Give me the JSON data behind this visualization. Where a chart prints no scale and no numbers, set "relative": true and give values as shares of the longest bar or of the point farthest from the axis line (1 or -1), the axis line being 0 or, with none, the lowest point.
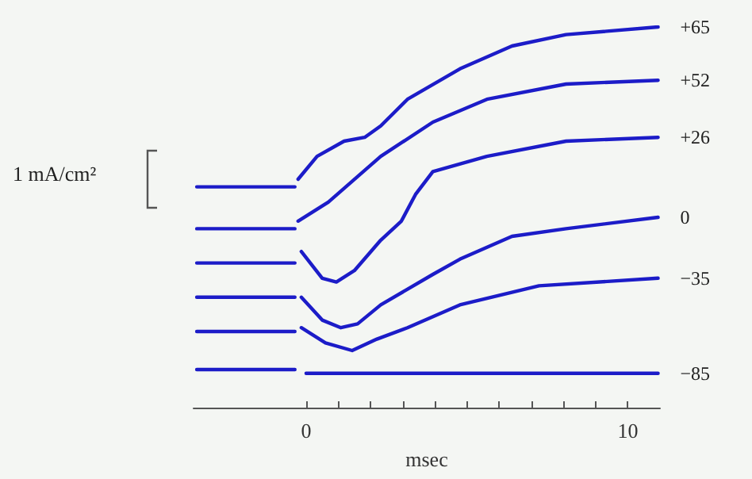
{
  "chart_data": {
    "type": "line",
    "relative": true,
    "xlabel": "msec",
    "xlim": [
      -3.5,
      11
    ],
    "xticks": [
      0,
      {
        "value": 1,
        "label": null
      },
      {
        "value": 2,
        "label": null
      },
      {
        "value": 3,
        "label": null
      },
      {
        "value": 4,
        "label": null
      },
      {
        "value": 5,
        "label": null
      },
      {
        "value": 6,
        "label": null
      },
      {
        "value": 7,
        "label": null
      },
      {
        "value": 8,
        "label": null
      },
      {
        "value": 9,
        "label": null
      },
      10
    ],
    "tick_labels": "x",
    "grid": false,
    "legend": false,
    "marker": "none",
    "line_style": "solid",
    "annotations": [
      "1 mA/cm²"
    ],
    "series": [
      {
        "name": "+65",
        "color": "#1c1cc8",
        "x": [
          -3.4,
          -0.35,
          -0.3,
          -0.25,
          0.34,
          1.18,
          1.82,
          2.32,
          3.15,
          4.78,
          6.4,
          8.08,
          10.94
        ],
        "values": [
          0.58,
          0.58,
          null,
          0.6,
          0.66,
          0.7,
          0.71,
          0.74,
          0.81,
          0.89,
          0.95,
          0.98,
          1
        ]
      },
      {
        "name": "+52",
        "color": "#1c1cc8",
        "x": [
          -3.4,
          -0.35,
          -0.3,
          -0.25,
          0.69,
          2.32,
          3.94,
          5.62,
          8.08,
          10.94
        ],
        "values": [
          0.47,
          0.47,
          null,
          0.49,
          0.54,
          0.66,
          0.75,
          0.81,
          0.85,
          0.86
        ]
      },
      {
        "name": "+26",
        "color": "#1c1cc8",
        "x": [
          -3.4,
          -0.35,
          -0.3,
          -0.15,
          0.5,
          0.94,
          1.5,
          2.32,
          2.96,
          3.4,
          3.94,
          5.62,
          8.08,
          10.94
        ],
        "values": [
          0.38,
          0.38,
          null,
          0.41,
          0.34,
          0.33,
          0.36,
          0.44,
          0.49,
          0.56,
          0.62,
          0.66,
          0.7,
          0.71
        ]
      },
      {
        "name": "0",
        "color": "#1c1cc8",
        "x": [
          -3.4,
          -0.35,
          -0.3,
          -0.15,
          0.5,
          1.08,
          1.6,
          2.32,
          3.94,
          4.78,
          6.4,
          8.08,
          10.94
        ],
        "values": [
          0.29,
          0.29,
          null,
          0.29,
          0.23,
          0.21,
          0.22,
          0.27,
          0.35,
          0.39,
          0.45,
          0.47,
          0.5
        ]
      },
      {
        "name": "−35",
        "color": "#1c1cc8",
        "x": [
          -3.4,
          -0.35,
          -0.3,
          -0.15,
          0.6,
          1.43,
          2.2,
          3.15,
          4.78,
          7.24,
          10.94
        ],
        "values": [
          0.2,
          0.2,
          null,
          0.21,
          0.17,
          0.15,
          0.18,
          0.21,
          0.27,
          0.32,
          0.34
        ]
      },
      {
        "name": "−85",
        "color": "#1c1cc8",
        "x": [
          -3.4,
          -0.35,
          -0.3,
          0,
          10.94
        ],
        "values": [
          0.1,
          0.1,
          null,
          0.09,
          0.09
        ]
      }
    ]
  }
}
